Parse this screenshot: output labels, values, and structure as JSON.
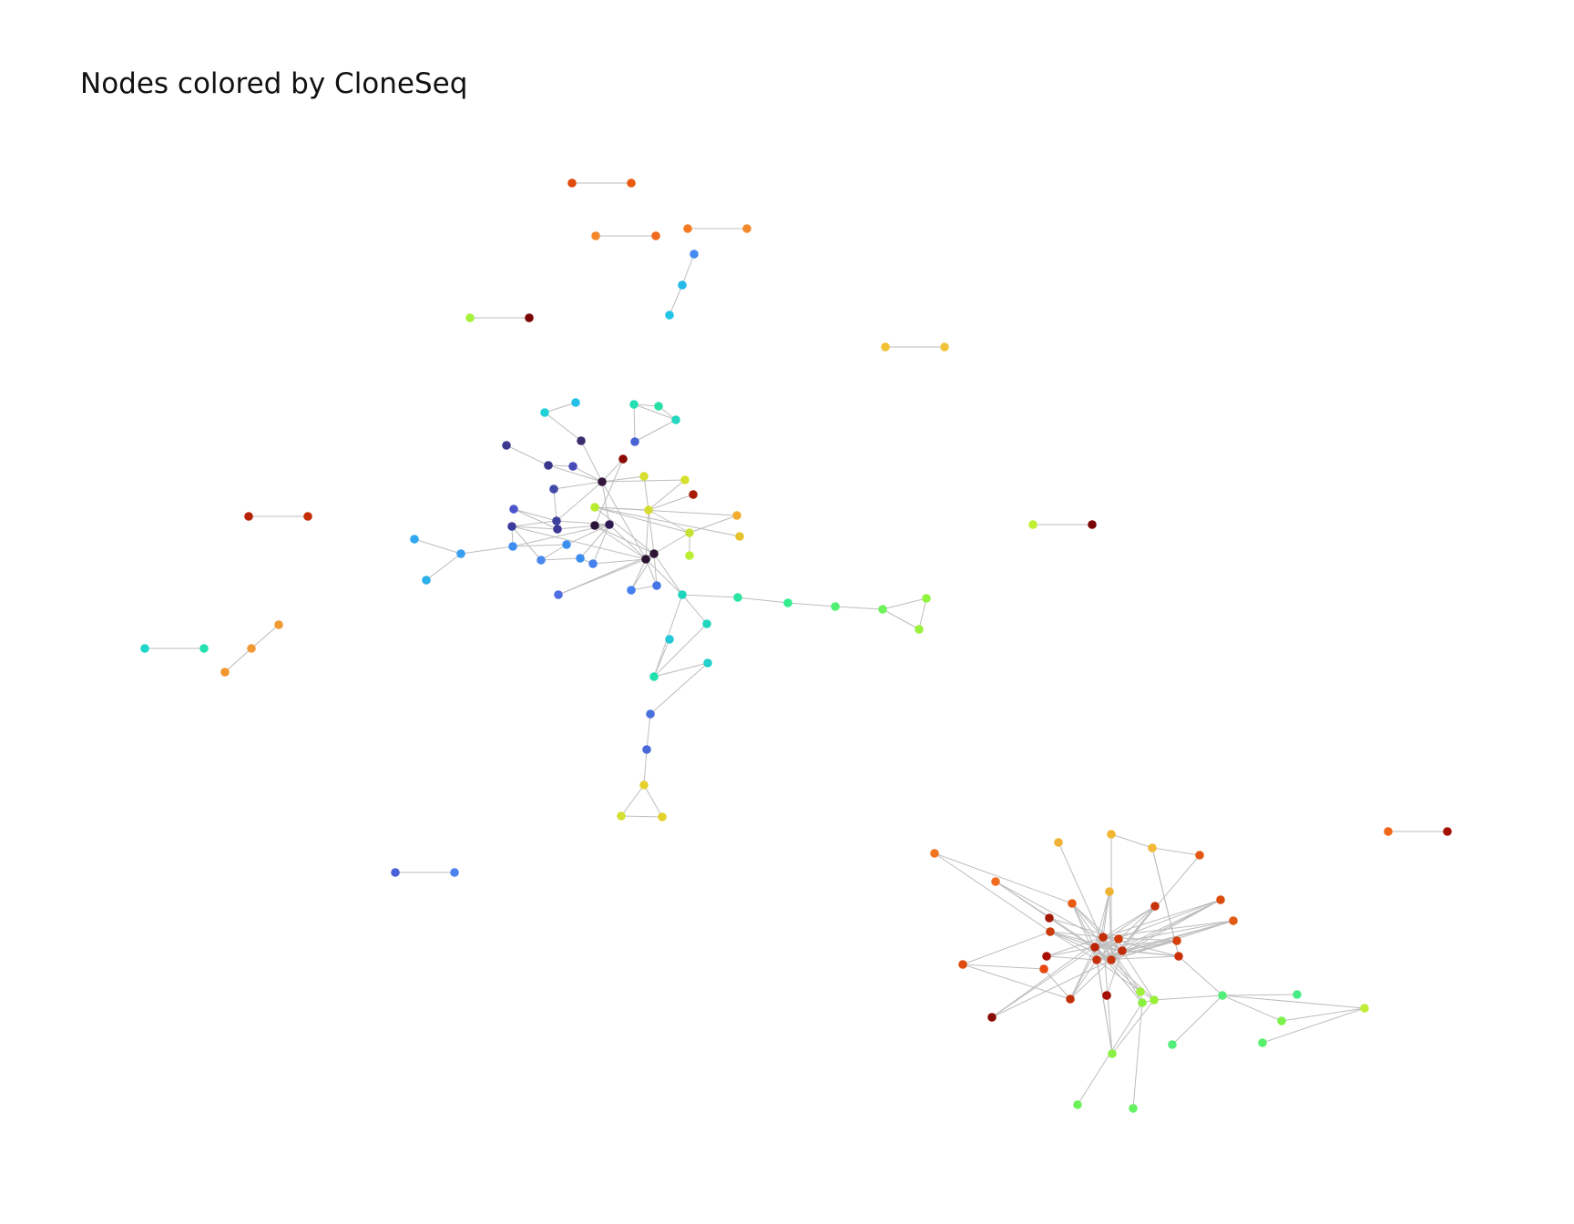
{
  "title": "Nodes colored by CloneSeq",
  "colormap": "turbo",
  "edge_color": "#bdbdbd",
  "network": {
    "nodes": [
      {
        "id": "p1",
        "c": "#e04a0b"
      },
      {
        "id": "p2",
        "c": "#e85b10"
      },
      {
        "id": "p3",
        "c": "#f5882a"
      },
      {
        "id": "p4",
        "c": "#f06a1e"
      },
      {
        "id": "p5",
        "c": "#f57a22"
      },
      {
        "id": "p6",
        "c": "#f3892c"
      },
      {
        "id": "b1",
        "c": "#4589f0"
      },
      {
        "id": "b2",
        "c": "#22b8e8"
      },
      {
        "id": "b3",
        "c": "#22c4e6"
      },
      {
        "id": "p7",
        "c": "#a5f23a"
      },
      {
        "id": "p8",
        "c": "#7a0403"
      },
      {
        "id": "p9",
        "c": "#f2c232"
      },
      {
        "id": "p10",
        "c": "#f0c33a"
      },
      {
        "id": "p11",
        "c": "#b52208"
      },
      {
        "id": "p12",
        "c": "#c32d06"
      },
      {
        "id": "p13",
        "c": "#bff030"
      },
      {
        "id": "p14",
        "c": "#7a0403"
      },
      {
        "id": "p15",
        "c": "#1fd6c8"
      },
      {
        "id": "p16",
        "c": "#25e0b0"
      },
      {
        "id": "o1",
        "c": "#f09a32"
      },
      {
        "id": "o2",
        "c": "#f29836"
      },
      {
        "id": "o3",
        "c": "#f3962e"
      },
      {
        "id": "p17",
        "c": "#4a60d6"
      },
      {
        "id": "p18",
        "c": "#4a83ee"
      },
      {
        "id": "p19",
        "c": "#f26818"
      },
      {
        "id": "p20",
        "c": "#a31303"
      },
      {
        "id": "a1",
        "c": "#22d0d8"
      },
      {
        "id": "a2",
        "c": "#25bfe8"
      },
      {
        "id": "a3",
        "c": "#24dfb4"
      },
      {
        "id": "a4",
        "c": "#28e0a6"
      },
      {
        "id": "a5",
        "c": "#25d6c0"
      },
      {
        "id": "a6",
        "c": "#3b3a8e"
      },
      {
        "id": "a7",
        "c": "#3c2d6f"
      },
      {
        "id": "a8",
        "c": "#4763d4"
      },
      {
        "id": "a9",
        "c": "#3a348a"
      },
      {
        "id": "a10",
        "c": "#4a4ab8"
      },
      {
        "id": "a11",
        "c": "#8b0a05"
      },
      {
        "id": "a12",
        "c": "#33163c"
      },
      {
        "id": "a13",
        "c": "#d5e030"
      },
      {
        "id": "a14",
        "c": "#d8e02e"
      },
      {
        "id": "a15",
        "c": "#424aa8"
      },
      {
        "id": "a16",
        "c": "#a81b07"
      },
      {
        "id": "a17",
        "c": "#d7dc32"
      },
      {
        "id": "a18",
        "c": "#c8e236"
      },
      {
        "id": "a19",
        "c": "#4d55cd"
      },
      {
        "id": "a20",
        "c": "#3f41a0"
      },
      {
        "id": "a21",
        "c": "#3c3a96"
      },
      {
        "id": "a22",
        "c": "#2e1a50"
      },
      {
        "id": "a23",
        "c": "#3d3b9a"
      },
      {
        "id": "a24",
        "c": "#2a1438"
      },
      {
        "id": "a25",
        "c": "#f0ad2e"
      },
      {
        "id": "a26",
        "c": "#b9ee32"
      },
      {
        "id": "a27",
        "c": "#e8c22c"
      },
      {
        "id": "a28",
        "c": "#3a9ef0"
      },
      {
        "id": "a29",
        "c": "#30a8f0"
      },
      {
        "id": "a30",
        "c": "#3e8cf0"
      },
      {
        "id": "a31",
        "c": "#3c90f0"
      },
      {
        "id": "a32",
        "c": "#4888f0"
      },
      {
        "id": "a33",
        "c": "#3c8ef0"
      },
      {
        "id": "a34",
        "c": "#4580ee"
      },
      {
        "id": "a35",
        "c": "#2a1330"
      },
      {
        "id": "a36",
        "c": "#2e1434"
      },
      {
        "id": "a37",
        "c": "#b9ec30"
      },
      {
        "id": "a38",
        "c": "#2cb2e8"
      },
      {
        "id": "a39",
        "c": "#4480ee"
      },
      {
        "id": "a40",
        "c": "#4474e6"
      },
      {
        "id": "a41",
        "c": "#4f6ee2"
      },
      {
        "id": "a42",
        "c": "#1ed6c0"
      },
      {
        "id": "a43",
        "c": "#2ae6a2"
      },
      {
        "id": "a44",
        "c": "#34ee8e"
      },
      {
        "id": "a45",
        "c": "#52f072"
      },
      {
        "id": "a46",
        "c": "#6ef45a"
      },
      {
        "id": "a47",
        "c": "#92f43e"
      },
      {
        "id": "a48",
        "c": "#9af23a"
      },
      {
        "id": "a49",
        "c": "#22d6be"
      },
      {
        "id": "a50",
        "c": "#24cfcc"
      },
      {
        "id": "a51",
        "c": "#22c8d8"
      },
      {
        "id": "a52",
        "c": "#22e0ae"
      },
      {
        "id": "a53",
        "c": "#4a70de"
      },
      {
        "id": "a54",
        "c": "#4b68da"
      },
      {
        "id": "a55",
        "c": "#e6d02e"
      },
      {
        "id": "a56",
        "c": "#d2e030"
      },
      {
        "id": "a57",
        "c": "#e2d22e"
      },
      {
        "id": "c1",
        "c": "#f27420"
      },
      {
        "id": "c2",
        "c": "#f0b234"
      },
      {
        "id": "c3",
        "c": "#f2b634"
      },
      {
        "id": "c4",
        "c": "#f2b836"
      },
      {
        "id": "c5",
        "c": "#e25812"
      },
      {
        "id": "c6",
        "c": "#f06c1e"
      },
      {
        "id": "c7",
        "c": "#f0b232"
      },
      {
        "id": "c8",
        "c": "#e85a14"
      },
      {
        "id": "c9",
        "c": "#c8320a"
      },
      {
        "id": "c10",
        "c": "#dc4a0c"
      },
      {
        "id": "c11",
        "c": "#e25a14"
      },
      {
        "id": "c12",
        "c": "#a01a07"
      },
      {
        "id": "c13",
        "c": "#cc3a0a"
      },
      {
        "id": "c14",
        "c": "#d5400a"
      },
      {
        "id": "c15",
        "c": "#c22e06"
      },
      {
        "id": "c16",
        "c": "#d23808"
      },
      {
        "id": "c17",
        "c": "#bb2505"
      },
      {
        "id": "c18",
        "c": "#c02a06"
      },
      {
        "id": "c19",
        "c": "#c8340a"
      },
      {
        "id": "c20",
        "c": "#a80e04"
      },
      {
        "id": "c21",
        "c": "#cc2e0a"
      },
      {
        "id": "c22",
        "c": "#c63008"
      },
      {
        "id": "c23",
        "c": "#e04c10"
      },
      {
        "id": "c24",
        "c": "#e6480e"
      },
      {
        "id": "c25",
        "c": "#d84610"
      },
      {
        "id": "c26",
        "c": "#c23008"
      },
      {
        "id": "c27",
        "c": "#8a0a04"
      },
      {
        "id": "c28",
        "c": "#9ef03a"
      },
      {
        "id": "c29",
        "c": "#9aef38"
      },
      {
        "id": "c30",
        "c": "#8cf040"
      },
      {
        "id": "c31",
        "c": "#52f07a"
      },
      {
        "id": "c32",
        "c": "#48ec86"
      },
      {
        "id": "c33",
        "c": "#c0ee36"
      },
      {
        "id": "c34",
        "c": "#7cf24a"
      },
      {
        "id": "c35",
        "c": "#58f06c"
      },
      {
        "id": "c36",
        "c": "#52ee7a"
      },
      {
        "id": "c37",
        "c": "#8af046"
      },
      {
        "id": "c38",
        "c": "#6ef25a"
      },
      {
        "id": "c39",
        "c": "#64f262"
      },
      {
        "id": "c40",
        "c": "#a50f05"
      }
    ],
    "edges": [
      [
        "p1",
        "p2"
      ],
      [
        "p3",
        "p4"
      ],
      [
        "p5",
        "p6"
      ],
      [
        "b1",
        "b2"
      ],
      [
        "b2",
        "b3"
      ],
      [
        "p7",
        "p8"
      ],
      [
        "p9",
        "p10"
      ],
      [
        "p11",
        "p12"
      ],
      [
        "p13",
        "p14"
      ],
      [
        "p15",
        "p16"
      ],
      [
        "o1",
        "o2"
      ],
      [
        "o2",
        "o3"
      ],
      [
        "p17",
        "p18"
      ],
      [
        "p19",
        "p20"
      ],
      [
        "a1",
        "a2"
      ],
      [
        "a1",
        "a7"
      ],
      [
        "a3",
        "a4"
      ],
      [
        "a3",
        "a5"
      ],
      [
        "a4",
        "a5"
      ],
      [
        "a5",
        "a8"
      ],
      [
        "a3",
        "a8"
      ],
      [
        "a6",
        "a9"
      ],
      [
        "a9",
        "a10"
      ],
      [
        "a9",
        "a12"
      ],
      [
        "a10",
        "a12"
      ],
      [
        "a7",
        "a12"
      ],
      [
        "a11",
        "a12"
      ],
      [
        "a11",
        "a24"
      ],
      [
        "a12",
        "a15"
      ],
      [
        "a12",
        "a22"
      ],
      [
        "a12",
        "a35"
      ],
      [
        "a12",
        "a20"
      ],
      [
        "a13",
        "a17"
      ],
      [
        "a13",
        "a12"
      ],
      [
        "a14",
        "a12"
      ],
      [
        "a17",
        "a18"
      ],
      [
        "a17",
        "a37"
      ],
      [
        "a17",
        "a35"
      ],
      [
        "a17",
        "a16"
      ],
      [
        "a17",
        "a14"
      ],
      [
        "a17",
        "a36"
      ],
      [
        "a18",
        "a36"
      ],
      [
        "a18",
        "a25"
      ],
      [
        "a18",
        "a26"
      ],
      [
        "a18",
        "a37"
      ],
      [
        "a15",
        "a20"
      ],
      [
        "a19",
        "a20"
      ],
      [
        "a19",
        "a21"
      ],
      [
        "a20",
        "a21"
      ],
      [
        "a20",
        "a22"
      ],
      [
        "a20",
        "a23"
      ],
      [
        "a21",
        "a22"
      ],
      [
        "a21",
        "a23"
      ],
      [
        "a22",
        "a30"
      ],
      [
        "a22",
        "a31"
      ],
      [
        "a22",
        "a33"
      ],
      [
        "a22",
        "a34"
      ],
      [
        "a22",
        "a24"
      ],
      [
        "a22",
        "a35"
      ],
      [
        "a23",
        "a30"
      ],
      [
        "a23",
        "a32"
      ],
      [
        "a23",
        "a35"
      ],
      [
        "a30",
        "a28"
      ],
      [
        "a28",
        "a29"
      ],
      [
        "a28",
        "a38"
      ],
      [
        "a30",
        "a31"
      ],
      [
        "a31",
        "a32"
      ],
      [
        "a32",
        "a33"
      ],
      [
        "a33",
        "a34"
      ],
      [
        "a34",
        "a35"
      ],
      [
        "a24",
        "a35"
      ],
      [
        "a24",
        "a36"
      ],
      [
        "a24",
        "a22"
      ],
      [
        "a35",
        "a36"
      ],
      [
        "a36",
        "a37"
      ],
      [
        "a36",
        "a39"
      ],
      [
        "a36",
        "a40"
      ],
      [
        "a36",
        "a41"
      ],
      [
        "a36",
        "a42"
      ],
      [
        "a35",
        "a39"
      ],
      [
        "a35",
        "a40"
      ],
      [
        "a35",
        "a41"
      ],
      [
        "a35",
        "a42"
      ],
      [
        "a39",
        "a40"
      ],
      [
        "a42",
        "a43"
      ],
      [
        "a43",
        "a44"
      ],
      [
        "a44",
        "a45"
      ],
      [
        "a45",
        "a46"
      ],
      [
        "a46",
        "a47"
      ],
      [
        "a46",
        "a48"
      ],
      [
        "a47",
        "a48"
      ],
      [
        "a42",
        "a49"
      ],
      [
        "a42",
        "a52"
      ],
      [
        "a49",
        "a52"
      ],
      [
        "a52",
        "a51"
      ],
      [
        "a52",
        "a50"
      ],
      [
        "a50",
        "a53"
      ],
      [
        "a53",
        "a54"
      ],
      [
        "a54",
        "a55"
      ],
      [
        "a55",
        "a56"
      ],
      [
        "a55",
        "a57"
      ],
      [
        "a56",
        "a57"
      ],
      [
        "a25",
        "a37"
      ],
      [
        "a27",
        "a37"
      ],
      [
        "c1",
        "c13"
      ],
      [
        "c1",
        "c8"
      ],
      [
        "c2",
        "c19"
      ],
      [
        "c3",
        "c4"
      ],
      [
        "c3",
        "c19"
      ],
      [
        "c4",
        "c21"
      ],
      [
        "c5",
        "c19"
      ],
      [
        "c6",
        "c17"
      ],
      [
        "c6",
        "c18"
      ],
      [
        "c6",
        "c19"
      ],
      [
        "c7",
        "c19"
      ],
      [
        "c7",
        "c15"
      ],
      [
        "c7",
        "c17"
      ],
      [
        "c7",
        "c22"
      ],
      [
        "c8",
        "c15"
      ],
      [
        "c8",
        "c17"
      ],
      [
        "c8",
        "c18"
      ],
      [
        "c8",
        "c19"
      ],
      [
        "c8",
        "c22"
      ],
      [
        "c9",
        "c15"
      ],
      [
        "c9",
        "c17"
      ],
      [
        "c9",
        "c18"
      ],
      [
        "c9",
        "c19"
      ],
      [
        "c9",
        "c22"
      ],
      [
        "c10",
        "c15"
      ],
      [
        "c10",
        "c17"
      ],
      [
        "c10",
        "c18"
      ],
      [
        "c10",
        "c19"
      ],
      [
        "c10",
        "c22"
      ],
      [
        "c11",
        "c15"
      ],
      [
        "c11",
        "c17"
      ],
      [
        "c11",
        "c18"
      ],
      [
        "c11",
        "c19"
      ],
      [
        "c11",
        "c22"
      ],
      [
        "c12",
        "c16"
      ],
      [
        "c13",
        "c15"
      ],
      [
        "c13",
        "c17"
      ],
      [
        "c13",
        "c18"
      ],
      [
        "c13",
        "c19"
      ],
      [
        "c13",
        "c22"
      ],
      [
        "c14",
        "c15"
      ],
      [
        "c14",
        "c17"
      ],
      [
        "c14",
        "c18"
      ],
      [
        "c14",
        "c19"
      ],
      [
        "c14",
        "c22"
      ],
      [
        "c15",
        "c17"
      ],
      [
        "c15",
        "c18"
      ],
      [
        "c15",
        "c19"
      ],
      [
        "c15",
        "c22"
      ],
      [
        "c17",
        "c18"
      ],
      [
        "c17",
        "c19"
      ],
      [
        "c17",
        "c22"
      ],
      [
        "c18",
        "c19"
      ],
      [
        "c18",
        "c22"
      ],
      [
        "c19",
        "c22"
      ],
      [
        "c16",
        "c15"
      ],
      [
        "c16",
        "c17"
      ],
      [
        "c16",
        "c18"
      ],
      [
        "c16",
        "c19"
      ],
      [
        "c16",
        "c22"
      ],
      [
        "c20",
        "c15"
      ],
      [
        "c20",
        "c17"
      ],
      [
        "c20",
        "c22"
      ],
      [
        "c21",
        "c15"
      ],
      [
        "c21",
        "c17"
      ],
      [
        "c21",
        "c18"
      ],
      [
        "c21",
        "c22"
      ],
      [
        "c21",
        "c4"
      ],
      [
        "c5",
        "c4"
      ],
      [
        "c23",
        "c26"
      ],
      [
        "c24",
        "c26"
      ],
      [
        "c23",
        "c13"
      ],
      [
        "c26",
        "c15"
      ],
      [
        "c26",
        "c17"
      ],
      [
        "c26",
        "c19"
      ],
      [
        "c26",
        "c22"
      ],
      [
        "c27",
        "c19"
      ],
      [
        "c27",
        "c15"
      ],
      [
        "c27",
        "c17"
      ],
      [
        "c25",
        "c18"
      ],
      [
        "c28",
        "c15"
      ],
      [
        "c28",
        "c17"
      ],
      [
        "c28",
        "c22"
      ],
      [
        "c28",
        "c29"
      ],
      [
        "c28",
        "c30"
      ],
      [
        "c29",
        "c30"
      ],
      [
        "c29",
        "c31"
      ],
      [
        "c29",
        "c37"
      ],
      [
        "c29",
        "c18"
      ],
      [
        "c29",
        "c19"
      ],
      [
        "c30",
        "c38"
      ],
      [
        "c30",
        "c39"
      ],
      [
        "c30",
        "c17"
      ],
      [
        "c30",
        "c15"
      ],
      [
        "c31",
        "c32"
      ],
      [
        "c31",
        "c33"
      ],
      [
        "c31",
        "c36"
      ],
      [
        "c31",
        "c34"
      ],
      [
        "c31",
        "c21"
      ],
      [
        "c33",
        "c34"
      ],
      [
        "c33",
        "c35"
      ],
      [
        "c37",
        "c15"
      ],
      [
        "c37",
        "c17"
      ],
      [
        "c37",
        "c22"
      ],
      [
        "c23",
        "c24"
      ]
    ]
  }
}
